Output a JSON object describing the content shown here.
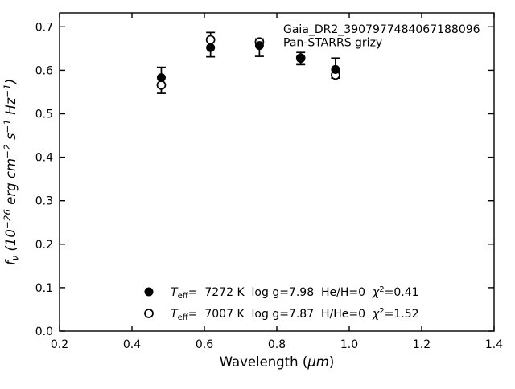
{
  "figure": {
    "background": "#ffffff",
    "ink_color": "#000000",
    "annotation": {
      "lines": [
        "Gaia_DR2_3907977484067188096",
        "Pan-STARRS grizy"
      ]
    },
    "x_axis": {
      "label_segments": [
        {
          "t": "Wavelength ("
        },
        {
          "t": "μm",
          "style": "italic"
        },
        {
          "t": ")"
        }
      ],
      "tick_labels": [
        "0.2",
        "0.4",
        "0.6",
        "0.8",
        "1.0",
        "1.2",
        "1.4"
      ]
    },
    "y_axis": {
      "label_segments": [
        {
          "t": "f",
          "style": "italic"
        },
        {
          "t": "ν",
          "style": "italic-sub"
        },
        {
          "t": " (10",
          "style": "italic"
        },
        {
          "t": "−26",
          "style": "italic-sup"
        },
        {
          "t": " erg ",
          "style": "italic"
        },
        {
          "t": "cm",
          "style": "italic"
        },
        {
          "t": "−2",
          "style": "italic-sup"
        },
        {
          "t": " s",
          "style": "italic"
        },
        {
          "t": "−1",
          "style": "italic-sup"
        },
        {
          "t": " Hz",
          "style": "italic"
        },
        {
          "t": "−1",
          "style": "italic-sup"
        },
        {
          "t": ")",
          "style": "italic"
        }
      ],
      "tick_labels": [
        "0.0",
        "0.1",
        "0.2",
        "0.3",
        "0.4",
        "0.5",
        "0.6",
        "0.7"
      ]
    },
    "legend": {
      "rows": [
        {
          "marker": "filled-circle",
          "segments": [
            {
              "t": "T",
              "style": "italic"
            },
            {
              "t": "eff",
              "style": "sub"
            },
            {
              "t": "=  7272 K  log g=7.98  He/H=0  "
            },
            {
              "t": "χ",
              "style": "italic"
            },
            {
              "t": "2",
              "style": "sup"
            },
            {
              "t": "=0.41"
            }
          ]
        },
        {
          "marker": "open-circle",
          "segments": [
            {
              "t": "T",
              "style": "italic"
            },
            {
              "t": "eff",
              "style": "sub"
            },
            {
              "t": "=  7007 K  log g=7.87  H/He=0  "
            },
            {
              "t": "χ",
              "style": "italic"
            },
            {
              "t": "2",
              "style": "sup"
            },
            {
              "t": "=1.52"
            }
          ]
        }
      ]
    }
  },
  "chart_data": {
    "type": "scatter",
    "title": "",
    "xlabel": "Wavelength (μm)",
    "ylabel": "f_ν (10^−26 erg cm^−2 s^−1 Hz^−1)",
    "annotation": [
      "Gaia_DR2_3907977484067188096",
      "Pan-STARRS grizy"
    ],
    "xlim": [
      0.2,
      1.4
    ],
    "ylim": [
      0.0,
      0.732
    ],
    "x_tick_values": [
      0.2,
      0.4,
      0.6,
      0.8,
      1.0,
      1.2,
      1.4
    ],
    "y_tick_values": [
      0.0,
      0.1,
      0.2,
      0.3,
      0.4,
      0.5,
      0.6,
      0.7
    ],
    "grid": false,
    "legend_position": "lower center",
    "marker_color": "#000000",
    "bands": [
      "g",
      "r",
      "i",
      "z",
      "y"
    ],
    "x": [
      0.481,
      0.617,
      0.752,
      0.866,
      0.962
    ],
    "series": [
      {
        "name": "Teff= 7272 K  log g=7.98  He/H=0  chi2=0.41",
        "marker": "filled-circle",
        "values": [
          0.583,
          0.652,
          0.657,
          0.628,
          0.602
        ]
      },
      {
        "name": "Teff= 7007 K  log g=7.87  H/He=0  chi2=1.52",
        "marker": "open-circle",
        "values": [
          0.566,
          0.67,
          0.665,
          0.628,
          0.589
        ]
      }
    ],
    "errorbars": {
      "center": [
        0.577,
        0.659,
        0.652,
        0.627,
        0.605
      ],
      "err": [
        0.03,
        0.028,
        0.02,
        0.014,
        0.023
      ]
    }
  }
}
